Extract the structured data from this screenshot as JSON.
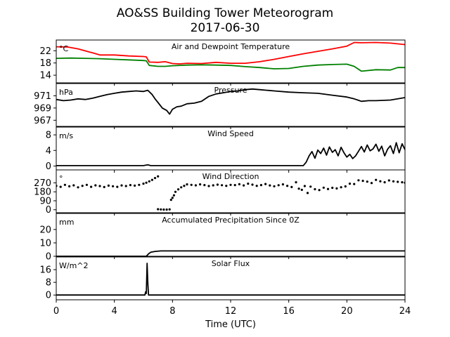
{
  "figure": {
    "title_line1": "AO&SS Building Tower Meteorogram",
    "title_line2": "2017-06-30",
    "xlabel": "Time (UTC)"
  },
  "chart_data": [
    {
      "type": "line",
      "title": "Air and Dewpoint Temperature",
      "unit_label": "°C",
      "xlim": [
        0,
        24
      ],
      "ylim": [
        11.5,
        25.5
      ],
      "xticks": [
        0,
        4,
        8,
        12,
        16,
        20,
        24
      ],
      "yticks": [
        14,
        18,
        22
      ],
      "series": [
        {
          "color": "#ff0000",
          "x": [
            0,
            0.8,
            1.5,
            2.5,
            3.0,
            4.0,
            5.0,
            6.0,
            6.2,
            6.4,
            7.0,
            7.5,
            8.0,
            8.5,
            9.0,
            10.0,
            11.0,
            12.0,
            13.0,
            14.0,
            15.0,
            16.0,
            17.0,
            18.0,
            19.0,
            20.0,
            20.5,
            21.0,
            22.0,
            23.0,
            24.0
          ],
          "y": [
            23.3,
            23.2,
            22.6,
            21.3,
            20.6,
            20.6,
            20.3,
            20.1,
            20.0,
            18.3,
            18.2,
            18.4,
            17.8,
            17.7,
            17.9,
            17.8,
            18.2,
            17.9,
            17.9,
            18.4,
            19.2,
            20.1,
            21.0,
            21.8,
            22.6,
            23.5,
            24.7,
            24.6,
            24.7,
            24.5,
            24.0
          ]
        },
        {
          "color": "#008000",
          "x": [
            0,
            1.0,
            2.0,
            3.0,
            4.0,
            5.0,
            6.0,
            6.2,
            6.4,
            7.0,
            7.5,
            8.0,
            9.0,
            10.0,
            11.0,
            12.0,
            13.0,
            14.0,
            15.0,
            16.0,
            17.0,
            18.0,
            19.0,
            20.0,
            20.5,
            21.0,
            22.0,
            23.0,
            23.5,
            24.0
          ],
          "y": [
            19.5,
            19.6,
            19.5,
            19.4,
            19.2,
            19.0,
            18.8,
            18.7,
            17.2,
            16.9,
            16.9,
            17.1,
            17.3,
            17.4,
            17.3,
            17.2,
            16.8,
            16.5,
            16.1,
            16.2,
            16.9,
            17.3,
            17.5,
            17.6,
            16.9,
            15.3,
            15.8,
            15.7,
            16.5,
            16.5
          ]
        }
      ]
    },
    {
      "type": "line",
      "title": "Pressure",
      "unit_label": "hPa",
      "xlim": [
        0,
        24
      ],
      "ylim": [
        966,
        973
      ],
      "xticks": [
        0,
        4,
        8,
        12,
        16,
        20,
        24
      ],
      "yticks": [
        967,
        969,
        971
      ],
      "series": [
        {
          "color": "#000000",
          "x": [
            0,
            0.5,
            1.0,
            1.5,
            2.0,
            2.5,
            3.0,
            3.5,
            4.0,
            4.5,
            5.0,
            5.5,
            6.0,
            6.3,
            6.6,
            6.8,
            7.0,
            7.3,
            7.6,
            7.8,
            8.0,
            8.3,
            8.6,
            9.0,
            9.5,
            10.0,
            10.5,
            11.0,
            11.5,
            12.0,
            12.5,
            13.0,
            13.5,
            14.0,
            14.5,
            15.0,
            16.0,
            17.0,
            18.0,
            19.0,
            20.0,
            20.5,
            21.0,
            21.5,
            22.0,
            23.0,
            24.0
          ],
          "y": [
            970.4,
            970.2,
            970.3,
            970.5,
            970.4,
            970.6,
            970.9,
            971.2,
            971.4,
            971.6,
            971.7,
            971.8,
            971.7,
            971.9,
            971.2,
            970.5,
            969.9,
            969.0,
            968.6,
            968.0,
            968.8,
            969.2,
            969.3,
            969.7,
            969.8,
            970.1,
            970.9,
            971.3,
            971.5,
            971.7,
            971.8,
            972.0,
            972.1,
            972.0,
            971.9,
            971.8,
            971.6,
            971.5,
            971.4,
            971.1,
            970.8,
            970.5,
            970.1,
            970.2,
            970.2,
            970.3,
            970.7
          ]
        }
      ]
    },
    {
      "type": "line",
      "title": "Wind Speed",
      "unit_label": "m/s",
      "xlim": [
        0,
        24
      ],
      "ylim": [
        -1,
        10
      ],
      "xticks": [
        0,
        4,
        8,
        12,
        16,
        20,
        24
      ],
      "yticks": [
        0,
        4,
        8
      ],
      "series": [
        {
          "color": "#000000",
          "x": [
            0,
            6.0,
            6.3,
            6.5,
            17.0,
            17.2,
            17.4,
            17.6,
            17.8,
            18.0,
            18.2,
            18.4,
            18.6,
            18.8,
            19.0,
            19.2,
            19.4,
            19.6,
            19.8,
            20.0,
            20.2,
            20.4,
            20.6,
            20.8,
            21.0,
            21.2,
            21.4,
            21.6,
            21.8,
            22.0,
            22.2,
            22.4,
            22.6,
            22.8,
            23.0,
            23.2,
            23.4,
            23.6,
            23.8,
            24.0
          ],
          "y": [
            0.1,
            0.1,
            0.3,
            0.1,
            0.1,
            1.0,
            2.6,
            3.7,
            2.0,
            4.1,
            3.2,
            4.6,
            2.8,
            4.9,
            3.5,
            4.2,
            2.6,
            4.8,
            3.4,
            2.3,
            3.0,
            1.9,
            2.6,
            3.8,
            5.0,
            3.6,
            5.4,
            3.9,
            4.4,
            5.6,
            3.8,
            5.1,
            2.6,
            4.3,
            5.2,
            3.2,
            6.0,
            3.4,
            5.7,
            4.2
          ]
        }
      ]
    },
    {
      "type": "scatter",
      "title": "Wind Direction",
      "unit_label": "°",
      "xlim": [
        0,
        24
      ],
      "ylim": [
        -30,
        400
      ],
      "xticks": [
        0,
        4,
        8,
        12,
        16,
        20,
        24
      ],
      "yticks": [
        0,
        90,
        180,
        270
      ],
      "series": [
        {
          "color": "#000000",
          "x": [
            0,
            0.3,
            0.6,
            0.9,
            1.2,
            1.5,
            1.8,
            2.1,
            2.4,
            2.7,
            3.0,
            3.3,
            3.6,
            3.9,
            4.2,
            4.5,
            4.8,
            5.1,
            5.4,
            5.7,
            6.0,
            6.2,
            6.4,
            6.6,
            6.8,
            7.0,
            7.0,
            7.2,
            7.4,
            7.6,
            7.8,
            7.9,
            8.0,
            8.1,
            8.2,
            8.4,
            8.6,
            8.8,
            9.0,
            9.3,
            9.6,
            9.9,
            10.2,
            10.5,
            10.8,
            11.1,
            11.4,
            11.7,
            12.0,
            12.3,
            12.6,
            12.9,
            13.2,
            13.5,
            13.8,
            14.1,
            14.4,
            14.7,
            15.0,
            15.3,
            15.6,
            15.9,
            16.2,
            16.5,
            16.7,
            16.9,
            17.1,
            17.3,
            17.5,
            17.8,
            18.1,
            18.4,
            18.7,
            19.0,
            19.3,
            19.6,
            19.9,
            20.2,
            20.5,
            20.8,
            21.1,
            21.4,
            21.7,
            22.0,
            22.3,
            22.6,
            22.9,
            23.2,
            23.5,
            23.8,
            24.0
          ],
          "y": [
            240,
            230,
            250,
            235,
            245,
            225,
            240,
            250,
            230,
            245,
            238,
            228,
            242,
            236,
            230,
            244,
            238,
            248,
            242,
            250,
            262,
            272,
            285,
            300,
            318,
            335,
            5,
            3,
            2,
            2,
            4,
            100,
            120,
            145,
            180,
            205,
            225,
            240,
            255,
            250,
            245,
            255,
            248,
            238,
            245,
            252,
            246,
            240,
            250,
            248,
            256,
            244,
            262,
            252,
            240,
            248,
            258,
            244,
            236,
            246,
            255,
            240,
            228,
            276,
            212,
            200,
            238,
            168,
            232,
            206,
            198,
            222,
            208,
            220,
            214,
            226,
            234,
            262,
            258,
            296,
            290,
            282,
            268,
            300,
            286,
            276,
            294,
            285,
            280,
            276,
            272
          ]
        }
      ]
    },
    {
      "type": "line",
      "title": "Accumulated Precipitation Since 0Z",
      "unit_label": "mm",
      "xlim": [
        0,
        24
      ],
      "ylim": [
        0,
        32
      ],
      "xticks": [
        0,
        4,
        8,
        12,
        16,
        20,
        24
      ],
      "yticks": [
        0,
        10,
        20
      ],
      "series": [
        {
          "color": "#000000",
          "x": [
            0,
            6.2,
            6.35,
            6.5,
            6.8,
            7.2,
            24.0
          ],
          "y": [
            0,
            0,
            1.8,
            3.0,
            3.6,
            4.0,
            4.0
          ]
        }
      ]
    },
    {
      "type": "line",
      "title": "Solar Flux",
      "unit_label": "W/m^2",
      "xlim": [
        0,
        24
      ],
      "ylim": [
        -3,
        24
      ],
      "xticks": [
        0,
        4,
        8,
        12,
        16,
        20,
        24
      ],
      "yticks": [
        0,
        8,
        16
      ],
      "series": [
        {
          "color": "#000000",
          "x": [
            0,
            6.1,
            6.15,
            6.2,
            6.25,
            6.3,
            6.35,
            24.0
          ],
          "y": [
            0,
            0,
            2,
            1,
            20,
            8,
            0,
            0
          ]
        }
      ]
    }
  ]
}
